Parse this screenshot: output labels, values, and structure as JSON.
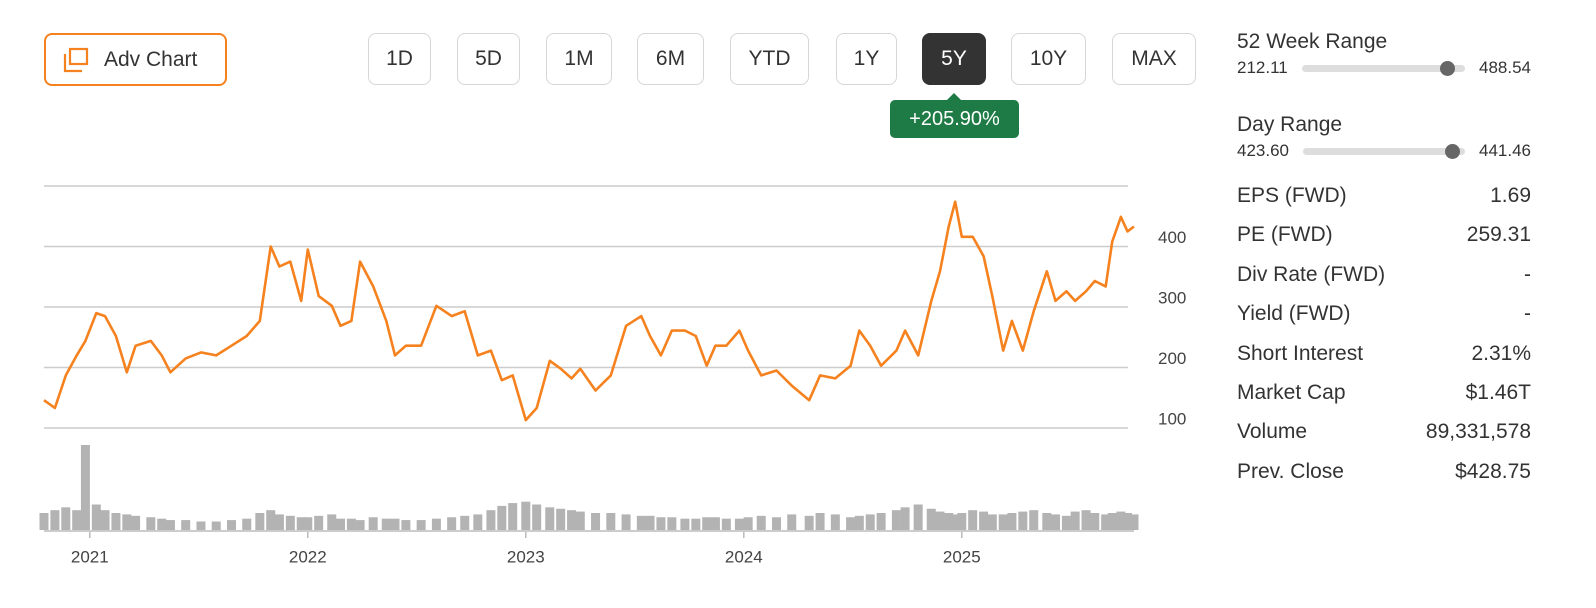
{
  "toolbar": {
    "adv_chart": "Adv Chart",
    "ranges": [
      "1D",
      "5D",
      "1M",
      "6M",
      "YTD",
      "1Y",
      "5Y",
      "10Y",
      "MAX"
    ],
    "active_range": "5Y",
    "change": "+205.90%"
  },
  "chart_data": {
    "type": "line",
    "x": [
      2020.79,
      2020.84,
      2020.89,
      2020.94,
      2020.98,
      2021.03,
      2021.07,
      2021.12,
      2021.17,
      2021.21,
      2021.28,
      2021.33,
      2021.37,
      2021.44,
      2021.51,
      2021.58,
      2021.65,
      2021.72,
      2021.78,
      2021.83,
      2021.87,
      2021.92,
      2021.97,
      2022.0,
      2022.05,
      2022.11,
      2022.15,
      2022.2,
      2022.24,
      2022.3,
      2022.36,
      2022.4,
      2022.45,
      2022.52,
      2022.59,
      2022.66,
      2022.72,
      2022.78,
      2022.84,
      2022.89,
      2022.94,
      2023.0,
      2023.05,
      2023.11,
      2023.16,
      2023.21,
      2023.25,
      2023.32,
      2023.39,
      2023.46,
      2023.53,
      2023.57,
      2023.62,
      2023.67,
      2023.73,
      2023.78,
      2023.83,
      2023.87,
      2023.92,
      2023.98,
      2024.02,
      2024.08,
      2024.15,
      2024.22,
      2024.3,
      2024.35,
      2024.42,
      2024.49,
      2024.53,
      2024.58,
      2024.63,
      2024.7,
      2024.74,
      2024.8,
      2024.86,
      2024.9,
      2024.94,
      2024.97,
      2025.0,
      2025.05,
      2025.1,
      2025.14,
      2025.19,
      2025.23,
      2025.28,
      2025.33,
      2025.39,
      2025.43,
      2025.48,
      2025.52,
      2025.57,
      2025.61,
      2025.66,
      2025.69,
      2025.73,
      2025.76,
      2025.79
    ],
    "series": [
      {
        "color": "#f5821f",
        "values": [
          146,
          133,
          187,
          220,
          244,
          290,
          285,
          252,
          192,
          236,
          244,
          220,
          192,
          215,
          225,
          220,
          236,
          252,
          277,
          400,
          367,
          375,
          310,
          395,
          318,
          302,
          269,
          277,
          375,
          334,
          277,
          220,
          236,
          236,
          302,
          285,
          293,
          220,
          228,
          179,
          187,
          113,
          133,
          211,
          198,
          182,
          198,
          162,
          187,
          269,
          285,
          252,
          220,
          261,
          261,
          252,
          203,
          236,
          236,
          261,
          228,
          187,
          195,
          170,
          146,
          187,
          182,
          203,
          261,
          236,
          203,
          228,
          261,
          220,
          310,
          359,
          433,
          474,
          416,
          416,
          384,
          318,
          228,
          277,
          228,
          293,
          359,
          310,
          326,
          310,
          326,
          343,
          334,
          408,
          449,
          425,
          433
        ]
      },
      {
        "color": "#b3b3b3",
        "axis": "y2",
        "values": [
          60,
          70,
          80,
          70,
          300,
          90,
          70,
          60,
          55,
          50,
          45,
          40,
          35,
          35,
          30,
          30,
          35,
          40,
          60,
          70,
          55,
          50,
          45,
          45,
          50,
          55,
          40,
          40,
          35,
          45,
          40,
          40,
          35,
          35,
          40,
          45,
          50,
          55,
          70,
          85,
          95,
          100,
          90,
          80,
          75,
          70,
          65,
          60,
          60,
          55,
          50,
          50,
          45,
          45,
          40,
          40,
          45,
          45,
          40,
          40,
          45,
          50,
          45,
          55,
          50,
          60,
          55,
          45,
          50,
          55,
          60,
          70,
          80,
          90,
          75,
          65,
          60,
          55,
          60,
          70,
          65,
          55,
          55,
          60,
          65,
          70,
          60,
          55,
          50,
          65,
          70,
          60,
          55,
          60,
          65,
          60,
          55
        ]
      }
    ],
    "xlim": [
      2020.79,
      2025.79
    ],
    "xticks": [
      2021,
      2022,
      2023,
      2024,
      2025
    ],
    "ylim": [
      100,
      500
    ],
    "yticks": [
      100,
      200,
      300,
      400
    ],
    "y2lim": [
      0,
      300
    ],
    "grid": true
  },
  "sidebar": {
    "ranges": [
      {
        "label": "52 Week Range",
        "low": "212.11",
        "high": "488.54"
      },
      {
        "label": "Day Range",
        "low": "423.60",
        "high": "441.46"
      }
    ],
    "stats": [
      {
        "label": "EPS (FWD)",
        "value": "1.69"
      },
      {
        "label": "PE (FWD)",
        "value": "259.31"
      },
      {
        "label": "Div Rate (FWD)",
        "value": "-"
      },
      {
        "label": "Yield (FWD)",
        "value": "-"
      },
      {
        "label": "Short Interest",
        "value": "2.31%"
      },
      {
        "label": "Market Cap",
        "value": "$1.46T"
      },
      {
        "label": "Volume",
        "value": "89,331,578"
      },
      {
        "label": "Prev. Close",
        "value": "$428.75"
      }
    ]
  }
}
